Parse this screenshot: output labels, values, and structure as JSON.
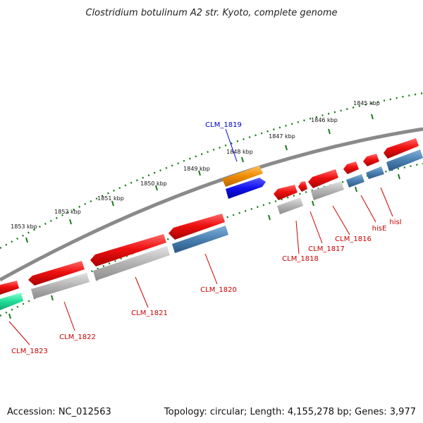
{
  "title": "Clostridium botulinum A2 str. Kyoto, complete genome",
  "footer": {
    "accession": "Accession: NC_012563",
    "summary": "Topology: circular; Length: 4,155,278 bp; Genes: 3,977"
  },
  "scale_labels": [
    "1853 kbp",
    "1852 kbp",
    "1851 kbp",
    "1850 kbp",
    "1849 kbp",
    "1848 kbp",
    "1847 kbp",
    "1846 kbp",
    "1845 kbp"
  ],
  "gene_labels": [
    {
      "text": "CLM_1819",
      "color": "#0000cc"
    },
    {
      "text": "CLM_1823",
      "color": "#cc0000"
    },
    {
      "text": "CLM_1822",
      "color": "#cc0000"
    },
    {
      "text": "CLM_1821",
      "color": "#cc0000"
    },
    {
      "text": "CLM_1820",
      "color": "#cc0000"
    },
    {
      "text": "CLM_1818",
      "color": "#cc0000"
    },
    {
      "text": "CLM_1817",
      "color": "#cc0000"
    },
    {
      "text": "CLM_1816",
      "color": "#cc0000"
    },
    {
      "text": "hisE",
      "color": "#cc0000"
    },
    {
      "text": "hisI",
      "color": "#cc0000"
    }
  ],
  "colors": {
    "backbone": "#8a8a8a",
    "ticks": "#1a7a1a",
    "cds": "#ee1111",
    "gene_gray": "#b3b3b3",
    "gene_steel": "#4a7fb0",
    "gene_orange": "#f08c00",
    "gene_blue": "#1010ee",
    "gene_green": "#22dd99"
  }
}
